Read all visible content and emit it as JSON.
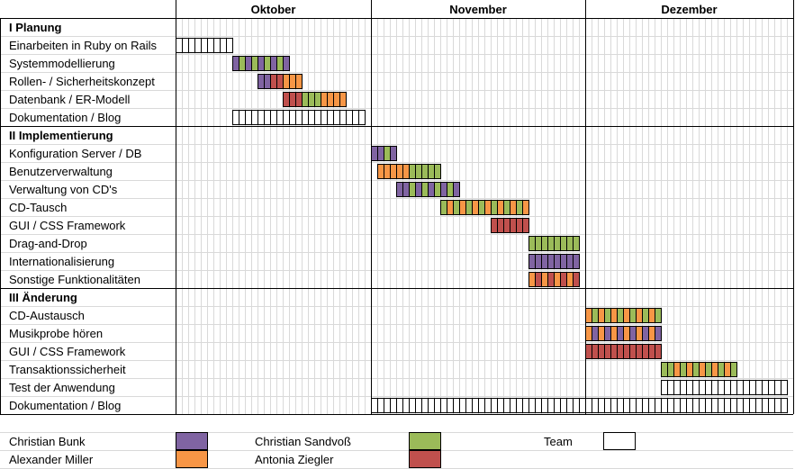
{
  "chart_data": {
    "type": "gantt",
    "months": [
      "Oktober",
      "November",
      "Dezember"
    ],
    "people": [
      {
        "name": "Christian Bunk",
        "color": "#8064a2"
      },
      {
        "name": "Christian Sandvoß",
        "color": "#9bbb59"
      },
      {
        "name": "Alexander Miller",
        "color": "#f79646"
      },
      {
        "name": "Antonia Ziegler",
        "color": "#c0504d"
      },
      {
        "name": "Team",
        "color": "#ffffff"
      }
    ],
    "sections": [
      {
        "title": "I Planung",
        "tasks": [
          {
            "name": "Einarbeiten in Ruby on Rails",
            "start": 0,
            "cells": [
              "T",
              "T",
              "T",
              "T",
              "T",
              "T",
              "T",
              "T",
              "T"
            ]
          },
          {
            "name": "Systemmodellierung",
            "start": 9,
            "cells": [
              "B",
              "G",
              "B",
              "G",
              "B",
              "G",
              "B",
              "G",
              "B"
            ]
          },
          {
            "name": "Rollen- / Sicherheitskonzept",
            "start": 13,
            "cells": [
              "B",
              "B",
              "R",
              "R",
              "O",
              "O",
              "O"
            ]
          },
          {
            "name": "Datenbank / ER-Modell",
            "start": 17,
            "cells": [
              "R",
              "R",
              "R",
              "G",
              "G",
              "G",
              "O",
              "O",
              "O",
              "O"
            ]
          },
          {
            "name": "Dokumentation / Blog",
            "start": 9,
            "cells": [
              "T",
              "T",
              "T",
              "T",
              "T",
              "T",
              "T",
              "T",
              "T",
              "T",
              "T",
              "T",
              "T",
              "T",
              "T",
              "T",
              "T",
              "T",
              "T",
              "T",
              "T"
            ]
          }
        ]
      },
      {
        "title": "II Implementierung",
        "tasks": [
          {
            "name": "Konfiguration Server / DB",
            "start": 31,
            "cells": [
              "B",
              "B",
              "G",
              "B"
            ]
          },
          {
            "name": "Benutzerverwaltung",
            "start": 32,
            "cells": [
              "O",
              "O",
              "O",
              "O",
              "O",
              "G",
              "G",
              "G",
              "G",
              "G"
            ]
          },
          {
            "name": "Verwaltung von CD's",
            "start": 35,
            "cells": [
              "B",
              "B",
              "G",
              "B",
              "G",
              "B",
              "G",
              "B",
              "G",
              "B"
            ]
          },
          {
            "name": "CD-Tausch",
            "start": 42,
            "cells": [
              "G",
              "O",
              "G",
              "O",
              "G",
              "O",
              "G",
              "O",
              "G",
              "O",
              "G",
              "O",
              "G",
              "O"
            ]
          },
          {
            "name": "GUI / CSS Framework",
            "start": 50,
            "cells": [
              "R",
              "R",
              "R",
              "R",
              "R",
              "R"
            ]
          },
          {
            "name": "Drag-and-Drop",
            "start": 56,
            "cells": [
              "G",
              "G",
              "G",
              "G",
              "G",
              "G",
              "G",
              "G"
            ]
          },
          {
            "name": "Internationalisierung",
            "start": 56,
            "cells": [
              "B",
              "B",
              "B",
              "B",
              "B",
              "B",
              "B",
              "B"
            ]
          },
          {
            "name": "Sonstige Funktionalitäten",
            "start": 56,
            "cells": [
              "O",
              "R",
              "O",
              "R",
              "O",
              "R",
              "O",
              "R"
            ]
          }
        ]
      },
      {
        "title": "III Änderung",
        "tasks": [
          {
            "name": "CD-Austausch",
            "start": 65,
            "cells": [
              "O",
              "G",
              "O",
              "G",
              "O",
              "G",
              "O",
              "G",
              "O",
              "G",
              "O",
              "G"
            ]
          },
          {
            "name": "Musikprobe hören",
            "start": 65,
            "cells": [
              "O",
              "B",
              "O",
              "B",
              "O",
              "B",
              "O",
              "B",
              "O",
              "B",
              "O",
              "B"
            ]
          },
          {
            "name": "GUI / CSS Framework",
            "start": 65,
            "cells": [
              "R",
              "R",
              "R",
              "R",
              "R",
              "R",
              "R",
              "R",
              "R",
              "R",
              "R",
              "R"
            ]
          },
          {
            "name": "Transaktionssicherheit",
            "start": 77,
            "cells": [
              "G",
              "G",
              "O",
              "G",
              "O",
              "G",
              "O",
              "G",
              "O",
              "G",
              "O",
              "G"
            ]
          },
          {
            "name": "Test der Anwendung",
            "start": 77,
            "cells": [
              "T",
              "T",
              "T",
              "T",
              "T",
              "T",
              "T",
              "T",
              "T",
              "T",
              "T",
              "T",
              "T",
              "T",
              "T",
              "T",
              "T",
              "T",
              "T",
              "T"
            ]
          },
          {
            "name": "Dokumentation / Blog",
            "start": 31,
            "cells": [
              "T",
              "T",
              "T",
              "T",
              "T",
              "T",
              "T",
              "T",
              "T",
              "T",
              "T",
              "T",
              "T",
              "T",
              "T",
              "T",
              "T",
              "T",
              "T",
              "T",
              "T",
              "T",
              "T",
              "T",
              "T",
              "T",
              "T",
              "T",
              "T",
              "T",
              "T",
              "T",
              "T",
              "T",
              "T",
              "T",
              "T",
              "T",
              "T",
              "T",
              "T",
              "T",
              "T",
              "T",
              "T",
              "T",
              "T",
              "T",
              "T",
              "T",
              "T",
              "T",
              "T",
              "T",
              "T",
              "T",
              "T",
              "T",
              "T",
              "T",
              "T",
              "T",
              "T",
              "T",
              "T",
              "T"
            ]
          }
        ]
      }
    ]
  }
}
